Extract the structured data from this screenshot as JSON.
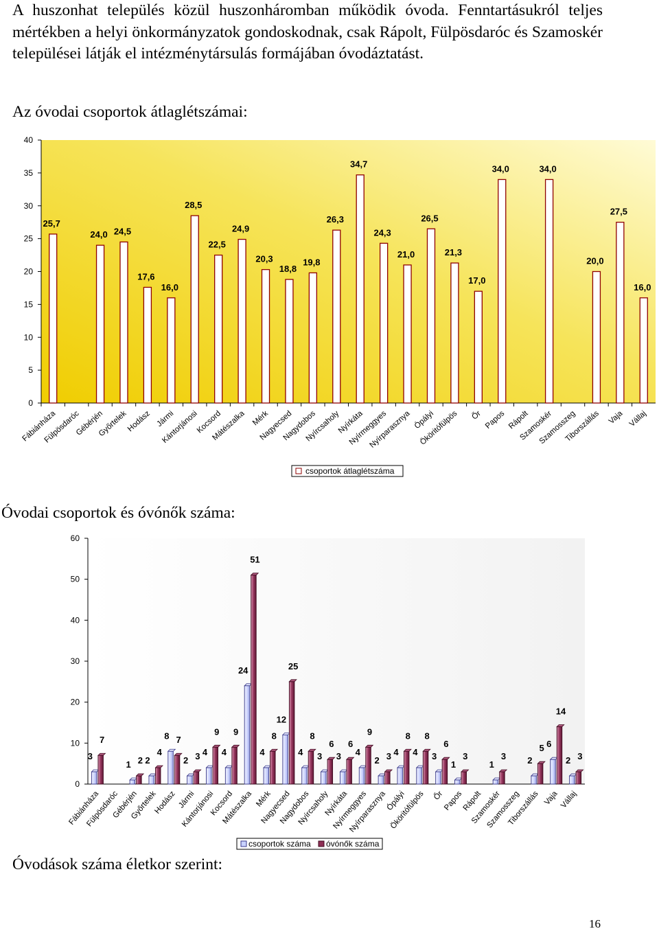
{
  "intro_paragraph": "A huszonhat település közül huszonháromban működik óvoda. Fenntartásukról teljes mértékben a helyi önkormányzatok gondoskodnak, csak Rápolt, Fülpösdaróc és Szamoskér települései látják el intézménytársulás formájában óvodáztatást.",
  "headings": {
    "avg_group_size": "Az óvodai csoportok átlaglétszámai:",
    "groups_and_teachers": "Óvodai csoportok és óvónők száma:",
    "children_by_age": "Óvodások száma életkor szerint:"
  },
  "page_number": "16",
  "chart_data": [
    {
      "type": "bar",
      "categories": [
        "Fábiánháza",
        "Fülpösdaróc",
        "Gébérjén",
        "Győrtelek",
        "Hodász",
        "Jármi",
        "Kántorjánosi",
        "Kocsord",
        "Mátészalka",
        "Mérk",
        "Nagyecsed",
        "Nagydobos",
        "Nyírcsaholy",
        "Nyírkáta",
        "Nyírmeggyes",
        "Nyírparasznya",
        "Ópályi",
        "Ököritófülpös",
        "Őr",
        "Papos",
        "Rápolt",
        "Szamoskér",
        "Szamosszeg",
        "Tiborszállás",
        "Vaja",
        "Vállaj"
      ],
      "series": [
        {
          "name": "csoportok átlaglétszáma",
          "values": [
            25.7,
            null,
            24.0,
            24.5,
            17.6,
            16.0,
            28.5,
            22.5,
            24.9,
            20.3,
            18.8,
            19.8,
            26.3,
            34.7,
            24.3,
            21.0,
            26.5,
            21.3,
            17.0,
            34.0,
            null,
            34.0,
            null,
            20.0,
            27.5,
            16.0
          ],
          "labels": [
            "25,7",
            "",
            "24,0",
            "24,5",
            "17,6",
            "16,0",
            "28,5",
            "22,5",
            "24,9",
            "20,3",
            "18,8",
            "19,8",
            "26,3",
            "34,7",
            "24,3",
            "21,0",
            "26,5",
            "21,3",
            "17,0",
            "34,0",
            "",
            "34,0",
            "",
            "20,0",
            "27,5",
            "16,0"
          ],
          "color": "#ffffff"
        }
      ],
      "ylim": [
        0,
        40
      ],
      "yticks": [
        "0",
        "5",
        "10",
        "15",
        "20",
        "25",
        "30",
        "35",
        "40"
      ],
      "grid": false,
      "legend_position": "bottom",
      "background_gradient": [
        "#f2d000",
        "#fff9c8"
      ]
    },
    {
      "type": "bar",
      "categories": [
        "Fábiánháza",
        "Fülpösdaróc",
        "Gébérjén",
        "Győrtelek",
        "Hodász",
        "Jármi",
        "Kántorjánosi",
        "Kocsord",
        "Mátészalka",
        "Mérk",
        "Nagyecsed",
        "Nagydobos",
        "Nyírcsaholy",
        "Nyírkáta",
        "Nyírmeggyes",
        "Nyírparasznya",
        "Ópályi",
        "Ököritófülpös",
        "Őr",
        "Papos",
        "Rápolt",
        "Szamoskér",
        "Szamosszeg",
        "Tiborszállás",
        "Vaja",
        "Vállaj"
      ],
      "series": [
        {
          "name": "csoportok száma",
          "values": [
            3,
            null,
            1,
            2,
            8,
            2,
            4,
            4,
            24,
            4,
            12,
            4,
            3,
            3,
            4,
            2,
            4,
            4,
            3,
            1,
            null,
            1,
            null,
            2,
            6,
            2
          ],
          "color": "#c9d2ff"
        },
        {
          "name": "óvónők száma",
          "values": [
            7,
            null,
            2,
            4,
            7,
            3,
            9,
            9,
            51,
            8,
            25,
            8,
            6,
            6,
            9,
            3,
            8,
            8,
            6,
            3,
            null,
            3,
            null,
            5,
            14,
            3
          ],
          "color": "#8e2f55"
        }
      ],
      "ylim": [
        0,
        60
      ],
      "yticks": [
        "0",
        "10",
        "20",
        "30",
        "40",
        "50",
        "60"
      ],
      "grid": false,
      "legend_position": "bottom"
    }
  ]
}
